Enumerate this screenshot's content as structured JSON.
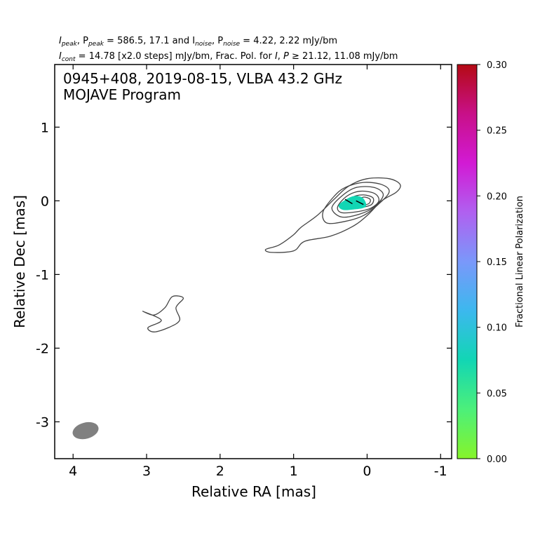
{
  "header": {
    "line1_prefix": "I",
    "line1_sub1": "peak",
    "line1_mid1": ", P",
    "line1_sub2": "peak",
    "line1_mid2": " = 586.5, 17.1 and I",
    "line1_sub3": "noise",
    "line1_mid3": ", P",
    "line1_sub4": "noise",
    "line1_tail": " = 4.22, 2.22 mJy/bm",
    "line2_prefix": "I",
    "line2_sub1": "cont",
    "line2_mid1": " = 14.78 [x2.0 steps] mJy/bm, Frac. Pol. for ",
    "line2_I": "I",
    "line2_comma": ", ",
    "line2_P": "P",
    "line2_tail": " ≥  21.12, 11.08 mJy/bm"
  },
  "chart_data": {
    "type": "contour",
    "title": "0945+408, 2019-08-15, VLBA 43.2 GHz",
    "subtitle": "MOJAVE Program",
    "xlabel": "Relative RA [mas]",
    "ylabel": "Relative Dec [mas]",
    "xlim": [
      4.25,
      -1.15
    ],
    "ylim": [
      -3.5,
      1.85
    ],
    "x_ticks": [
      4,
      3,
      2,
      1,
      0,
      -1
    ],
    "x_tick_labels": [
      "4",
      "3",
      "2",
      "1",
      "0",
      "-1"
    ],
    "y_ticks": [
      1,
      0,
      -1,
      -2,
      -3
    ],
    "y_tick_labels": [
      "1",
      "0",
      "-1",
      "-2",
      "-3"
    ],
    "contour_levels_mJy": [
      14.78,
      29.56,
      59.12,
      118.24,
      236.48,
      472.96
    ],
    "contours": [
      {
        "level": 14.78,
        "points": [
          [
            1.38,
            -0.66
          ],
          [
            1.2,
            -0.6
          ],
          [
            1.0,
            -0.46
          ],
          [
            0.9,
            -0.36
          ],
          [
            0.68,
            -0.2
          ],
          [
            0.45,
            0.02
          ],
          [
            0.25,
            0.2
          ],
          [
            0.0,
            0.3
          ],
          [
            -0.3,
            0.3
          ],
          [
            -0.45,
            0.22
          ],
          [
            -0.4,
            0.12
          ],
          [
            -0.2,
            0.0
          ],
          [
            0.0,
            -0.2
          ],
          [
            0.2,
            -0.35
          ],
          [
            0.5,
            -0.48
          ],
          [
            0.85,
            -0.55
          ],
          [
            1.0,
            -0.68
          ],
          [
            1.3,
            -0.7
          ]
        ]
      },
      {
        "level": 29.56,
        "points": [
          [
            0.6,
            -0.15
          ],
          [
            0.45,
            0.06
          ],
          [
            0.3,
            0.18
          ],
          [
            0.05,
            0.25
          ],
          [
            -0.2,
            0.22
          ],
          [
            -0.3,
            0.12
          ],
          [
            -0.15,
            -0.05
          ],
          [
            0.05,
            -0.2
          ],
          [
            0.3,
            -0.28
          ],
          [
            0.55,
            -0.3
          ]
        ]
      },
      {
        "level": 59.12,
        "points": [
          [
            0.48,
            -0.1
          ],
          [
            0.35,
            0.06
          ],
          [
            0.15,
            0.18
          ],
          [
            -0.1,
            0.18
          ],
          [
            -0.22,
            0.08
          ],
          [
            -0.1,
            -0.08
          ],
          [
            0.1,
            -0.18
          ],
          [
            0.35,
            -0.22
          ]
        ]
      },
      {
        "level": 118.24,
        "points": [
          [
            0.4,
            -0.08
          ],
          [
            0.28,
            0.06
          ],
          [
            0.1,
            0.13
          ],
          [
            -0.1,
            0.1
          ],
          [
            -0.16,
            0.0
          ],
          [
            -0.05,
            -0.1
          ],
          [
            0.15,
            -0.15
          ],
          [
            0.35,
            -0.16
          ]
        ]
      },
      {
        "level": 236.48,
        "points": [
          [
            0.32,
            -0.05
          ],
          [
            0.2,
            0.05
          ],
          [
            0.05,
            0.08
          ],
          [
            -0.08,
            0.04
          ],
          [
            -0.06,
            -0.05
          ],
          [
            0.08,
            -0.09
          ],
          [
            0.25,
            -0.1
          ]
        ]
      },
      {
        "level": 472.96,
        "points": [
          [
            0.16,
            -0.01
          ],
          [
            0.05,
            0.05
          ],
          [
            -0.04,
            0.02
          ],
          [
            -0.02,
            -0.04
          ],
          [
            0.1,
            -0.06
          ]
        ]
      },
      {
        "level": 14.78,
        "points": [
          [
            2.9,
            -1.55
          ],
          [
            2.75,
            -1.45
          ],
          [
            2.65,
            -1.3
          ],
          [
            2.5,
            -1.32
          ],
          [
            2.6,
            -1.45
          ],
          [
            2.55,
            -1.62
          ],
          [
            2.7,
            -1.72
          ],
          [
            2.9,
            -1.78
          ],
          [
            2.98,
            -1.72
          ],
          [
            2.8,
            -1.62
          ],
          [
            3.05,
            -1.5
          ]
        ]
      }
    ],
    "polarization_region": {
      "value": 0.06,
      "points": [
        [
          0.38,
          -0.05
        ],
        [
          0.2,
          0.06
        ],
        [
          0.06,
          0.04
        ],
        [
          0.02,
          -0.08
        ],
        [
          0.2,
          -0.12
        ],
        [
          0.34,
          -0.12
        ]
      ]
    },
    "evpa_vectors": [
      {
        "x": 0.3,
        "y": 0.02,
        "dx": -0.1,
        "dy": -0.06
      },
      {
        "x": 0.15,
        "y": 0.0,
        "dx": -0.1,
        "dy": -0.05
      }
    ],
    "beam": {
      "x": 3.83,
      "y": -3.12,
      "major_mas": 0.36,
      "minor_mas": 0.22,
      "pa_deg": 75
    },
    "colorbar": {
      "label": "Fractional Linear Polarization",
      "range": [
        0.0,
        0.3
      ],
      "ticks": [
        0.0,
        0.05,
        0.1,
        0.15,
        0.2,
        0.25,
        0.3
      ],
      "tick_labels": [
        "0.00",
        "0.05",
        "0.10",
        "0.15",
        "0.20",
        "0.25",
        "0.30"
      ],
      "colors": [
        "#86f42a",
        "#4cf07a",
        "#12d6b4",
        "#3cb8ee",
        "#7a98fa",
        "#b060f0",
        "#d21ad4",
        "#c81088",
        "#b40a14"
      ]
    },
    "colors": {
      "contour": "#444444",
      "beam": "#808080",
      "evpa": "#000000",
      "axes": "#000000"
    }
  }
}
